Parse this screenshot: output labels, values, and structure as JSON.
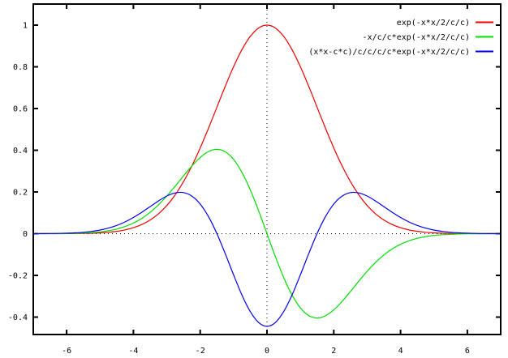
{
  "chart_data": {
    "type": "line",
    "title": "",
    "xlabel": "",
    "ylabel": "",
    "xlim": [
      -7,
      7
    ],
    "ylim": [
      -0.4835,
      1.101
    ],
    "x_ticks": [
      -6,
      -4,
      -2,
      0,
      2,
      4,
      6
    ],
    "x_tick_labels": [
      "-6",
      "-4",
      "-2",
      "0",
      "2",
      "4",
      "6"
    ],
    "y_ticks": [
      1,
      0.8,
      0.6,
      0.4,
      0.2,
      0,
      -0.2,
      -0.4
    ],
    "y_tick_labels": [
      "1",
      "0.8",
      "0.6",
      "0.4",
      "0.2",
      "0",
      "-0.2",
      "-0.4"
    ],
    "grid": "dotted zero axes at x=0 and y=0",
    "legend_position": "top-right-inside",
    "axis_color": "#000000",
    "background_color": "#ffffff",
    "c": 1.5,
    "x": [
      -7,
      -6.75,
      -6.5,
      -6.25,
      -6,
      -5.75,
      -5.5,
      -5.25,
      -5,
      -4.75,
      -4.5,
      -4.25,
      -4,
      -3.75,
      -3.5,
      -3.25,
      -3,
      -2.75,
      -2.5,
      -2.25,
      -2,
      -1.75,
      -1.5,
      -1.25,
      -1,
      -0.75,
      -0.5,
      -0.25,
      0,
      0.25,
      0.5,
      0.75,
      1,
      1.25,
      1.5,
      1.75,
      2,
      2.25,
      2.5,
      2.75,
      3,
      3.25,
      3.5,
      3.75,
      4,
      4.25,
      4.5,
      4.75,
      5,
      5.25,
      5.5,
      5.75,
      6,
      6.25,
      6.5,
      6.75,
      7
    ],
    "series": [
      {
        "id": "gaussian",
        "name": "exp(-x*x/2/c/c)",
        "color": "#ee0000",
        "values": [
          2e-05,
          4e-05,
          8e-05,
          0.00017,
          0.00034,
          0.00064,
          0.0012,
          0.00219,
          0.00387,
          0.00665,
          0.01111,
          0.01808,
          0.02856,
          0.04394,
          0.06571,
          0.09561,
          0.13534,
          0.18632,
          0.24935,
          0.32465,
          0.41111,
          0.50637,
          0.60653,
          0.70665,
          0.80074,
          0.8825,
          0.94596,
          0.98621,
          1,
          0.98621,
          0.94596,
          0.8825,
          0.80074,
          0.70665,
          0.60653,
          0.50637,
          0.41111,
          0.32465,
          0.24935,
          0.18632,
          0.13534,
          0.09561,
          0.06571,
          0.04394,
          0.02856,
          0.01808,
          0.01111,
          0.00665,
          0.00387,
          0.00219,
          0.0012,
          0.00064,
          0.00034,
          0.00017,
          8e-05,
          4e-05,
          2e-05
        ]
      },
      {
        "id": "first-derivative",
        "name": "-x/c/c*exp(-x*x/2/c/c)",
        "color": "#00dd00",
        "values": [
          6e-05,
          0.00012,
          0.00024,
          0.00047,
          0.00089,
          0.00165,
          0.00294,
          0.00512,
          0.00859,
          0.01404,
          0.02222,
          0.03416,
          0.05077,
          0.07323,
          0.10222,
          0.13811,
          0.18045,
          0.22772,
          0.27706,
          0.32465,
          0.36543,
          0.39384,
          0.40435,
          0.39258,
          0.35588,
          0.29417,
          0.21021,
          0.10958,
          0,
          -0.10958,
          -0.21021,
          -0.29417,
          -0.35588,
          -0.39258,
          -0.40435,
          -0.39384,
          -0.36543,
          -0.32465,
          -0.27706,
          -0.22772,
          -0.18045,
          -0.13811,
          -0.10222,
          -0.07323,
          -0.05077,
          -0.03416,
          -0.02222,
          -0.01404,
          -0.00859,
          -0.00512,
          -0.00294,
          -0.00165,
          -0.00089,
          -0.00047,
          -0.00024,
          -0.00012,
          -6e-05
        ]
      },
      {
        "id": "second-derivative",
        "name": "(x*x-c*c)/c/c/c/c*exp(-x*x/2/c/c)",
        "color": "#0000ee",
        "values": [
          0.00017,
          0.00034,
          0.00066,
          0.00123,
          0.00224,
          0.00392,
          0.00665,
          0.01095,
          0.01737,
          0.02668,
          0.0395,
          0.05647,
          0.07757,
          0.10253,
          0.1298,
          0.15699,
          0.18045,
          0.19552,
          0.19702,
          0.18036,
          0.14211,
          0.08127,
          0,
          -0.09597,
          -0.19771,
          -0.29417,
          -0.37372,
          -0.42614,
          -0.44444,
          -0.42614,
          -0.37372,
          -0.29417,
          -0.19771,
          -0.09597,
          0,
          0.08127,
          0.14211,
          0.18036,
          0.19702,
          0.19552,
          0.18045,
          0.15699,
          0.1298,
          0.10253,
          0.07757,
          0.05647,
          0.0395,
          0.02668,
          0.01737,
          0.01095,
          0.00665,
          0.00392,
          0.00224,
          0.00123,
          0.00066,
          0.00034,
          0.00017
        ]
      }
    ]
  }
}
